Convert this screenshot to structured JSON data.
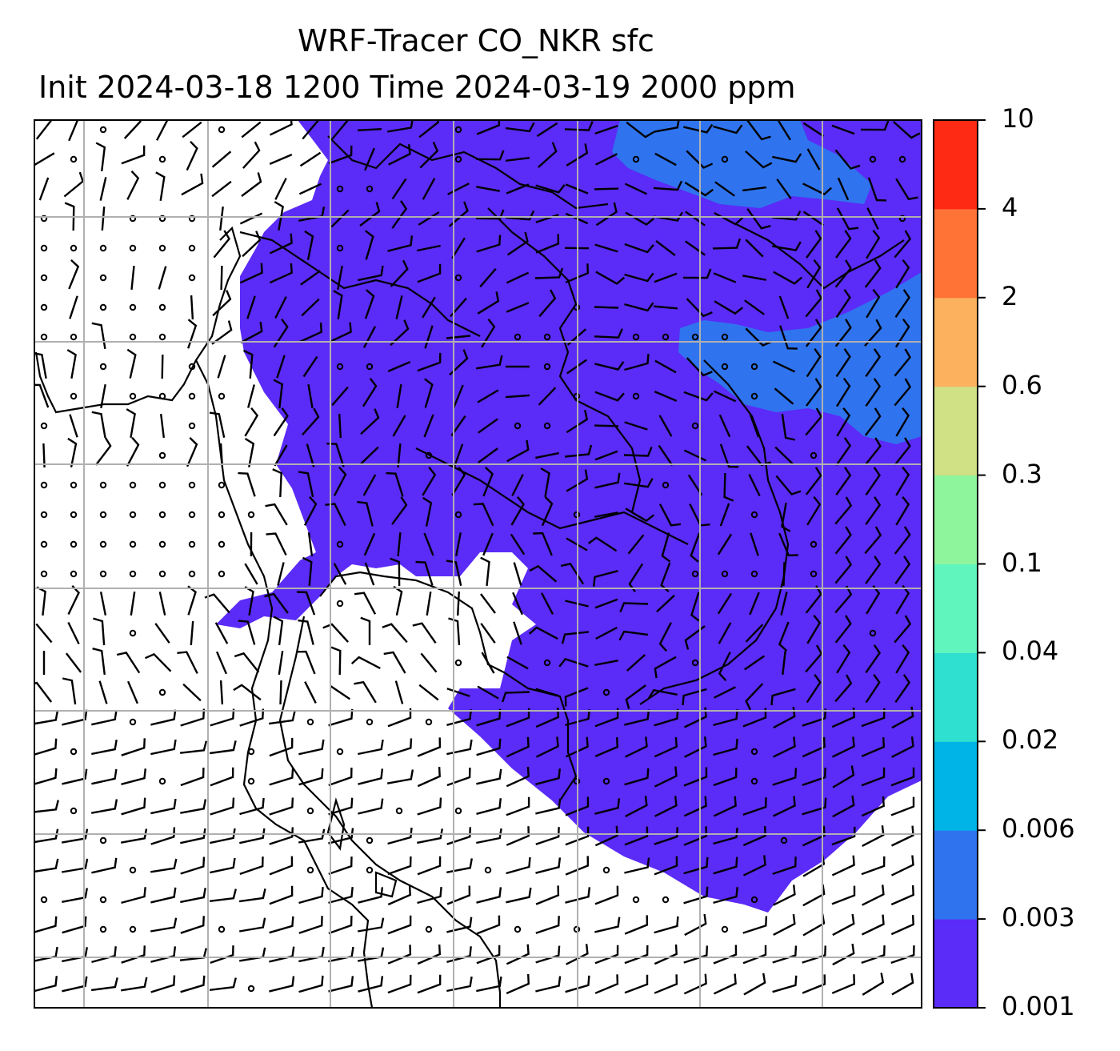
{
  "title": {
    "line1": "WRF-Tracer CO_NKR sfc",
    "line2": "Init 2024-03-18 1200 Time 2024-03-19 2000 ppm"
  },
  "colorbar": {
    "levels": [
      "0.001",
      "0.003",
      "0.006",
      "0.02",
      "0.04",
      "0.1",
      "0.3",
      "0.6",
      "2",
      "4",
      "10"
    ],
    "colors": [
      "#5b2bf7",
      "#2f74ee",
      "#00b4e8",
      "#2fe0d0",
      "#5ff5bd",
      "#8ff59c",
      "#cfe085",
      "#fbb15d",
      "#ff7336",
      "#ff2a14"
    ]
  },
  "map": {
    "field": "CO_NKR",
    "fill_colors": {
      "low": "#5b2bf7",
      "mid": "#2f74ee",
      "none": "#ffffff"
    },
    "graticule_color": "#b0b0b0",
    "coast_color": "#000000"
  }
}
